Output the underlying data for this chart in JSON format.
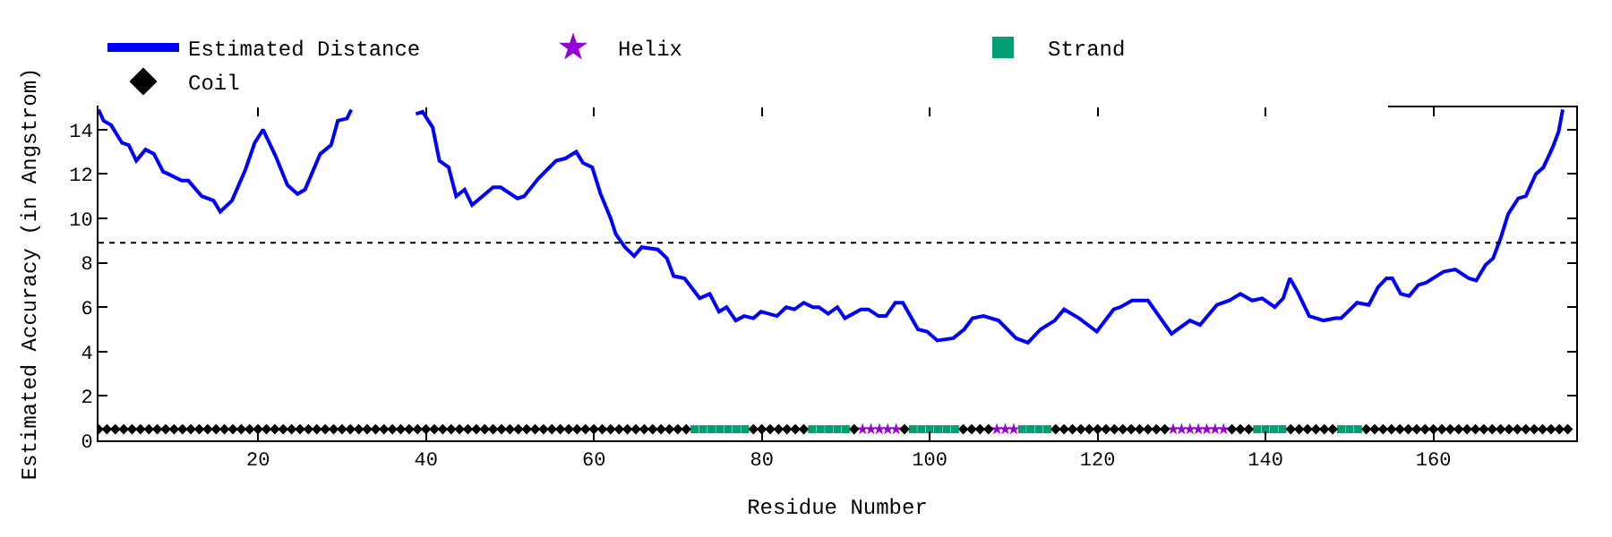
{
  "chart_data": {
    "type": "line",
    "xlabel": "Residue Number",
    "ylabel": "Estimated Accuracy (in Angstrom)",
    "xlim": [
      1,
      177
    ],
    "ylim": [
      0,
      15
    ],
    "xticks": [
      20,
      40,
      60,
      80,
      100,
      120,
      140,
      160
    ],
    "yticks": [
      0,
      2,
      4,
      6,
      8,
      10,
      12,
      14
    ],
    "grid": false,
    "legend": "top",
    "ref_lines": [
      {
        "axis": "y",
        "value": 8.9,
        "label": null,
        "color": "#000000",
        "line_style": "dotted"
      }
    ],
    "series": [
      {
        "name": "Estimated Distance",
        "color": "#0000ff",
        "marker": "none",
        "line_style": "solid",
        "x": [
          1.0,
          1.6,
          2.5,
          3.8,
          4.6,
          5.5,
          6.6,
          7.6,
          8.7,
          9.3,
          10.9,
          11.7,
          13.3,
          14.7,
          15.5,
          16.9,
          18.5,
          19.6,
          20.6,
          22.1,
          23.5,
          24.7,
          25.6,
          27.4,
          28.7,
          29.5,
          30.6,
          31.1,
          35.0,
          38.8,
          39.6,
          40.8,
          41.6,
          42.7,
          43.6,
          44.6,
          45.5,
          48.0,
          48.9,
          50.9,
          51.7,
          53.4,
          55.5,
          56.6,
          57.9,
          58.7,
          59.8,
          60.8,
          62.0,
          62.6,
          63.7,
          64.8,
          65.7,
          67.6,
          68.7,
          69.5,
          70.8,
          72.6,
          73.8,
          74.9,
          75.8,
          76.9,
          77.9,
          79.0,
          79.9,
          81.8,
          82.9,
          83.9,
          85.0,
          86.1,
          86.8,
          87.9,
          89.0,
          89.9,
          91.8,
          92.7,
          93.9,
          94.8,
          95.9,
          96.8,
          98.6,
          99.7,
          100.9,
          102.8,
          104.1,
          105.1,
          106.4,
          108.2,
          110.3,
          111.7,
          113.2,
          114.9,
          116.0,
          117.8,
          119.9,
          121.9,
          122.7,
          124.1,
          126.0,
          128.8,
          131.0,
          132.2,
          134.2,
          135.7,
          137.0,
          138.4,
          139.6,
          141.1,
          142.1,
          142.9,
          143.8,
          145.2,
          146.9,
          148.3,
          149.0,
          150.9,
          152.3,
          153.4,
          154.4,
          155.1,
          156.1,
          157.1,
          158.2,
          159.1,
          161.2,
          162.6,
          164.2,
          165.1,
          166.2,
          167.1,
          168.0,
          168.9,
          170.1,
          171.0,
          172.2,
          173.1,
          174.2,
          174.9,
          175.4
        ],
        "values": [
          14.9,
          14.4,
          14.2,
          13.4,
          13.3,
          12.6,
          13.1,
          12.9,
          12.1,
          12.0,
          11.7,
          11.7,
          11.0,
          10.8,
          10.3,
          10.8,
          12.2,
          13.4,
          14.0,
          12.8,
          11.5,
          11.1,
          11.3,
          12.9,
          13.3,
          14.4,
          14.5,
          14.9,
          null,
          14.7,
          14.8,
          14.1,
          12.6,
          12.3,
          11.0,
          11.3,
          10.6,
          11.4,
          11.4,
          10.9,
          11.0,
          11.8,
          12.6,
          12.7,
          13.0,
          12.5,
          12.3,
          11.1,
          10.0,
          9.3,
          8.7,
          8.3,
          8.7,
          8.6,
          8.2,
          7.4,
          7.3,
          6.4,
          6.6,
          5.8,
          6.0,
          5.4,
          5.6,
          5.5,
          5.8,
          5.6,
          6.0,
          5.9,
          6.2,
          6.0,
          6.0,
          5.7,
          6.0,
          5.5,
          5.9,
          5.9,
          5.6,
          5.6,
          6.2,
          6.2,
          5.0,
          4.9,
          4.5,
          4.6,
          5.0,
          5.5,
          5.6,
          5.4,
          4.6,
          4.4,
          5.0,
          5.4,
          5.9,
          5.5,
          4.9,
          5.9,
          6.0,
          6.3,
          6.3,
          4.8,
          5.4,
          5.2,
          6.1,
          6.3,
          6.6,
          6.3,
          6.4,
          6.0,
          6.4,
          7.3,
          6.7,
          5.6,
          5.4,
          5.5,
          5.5,
          6.2,
          6.1,
          6.9,
          7.3,
          7.3,
          6.6,
          6.5,
          7.0,
          7.1,
          7.6,
          7.7,
          7.3,
          7.2,
          7.9,
          8.2,
          9.1,
          10.2,
          10.9,
          11.0,
          12.0,
          12.3,
          13.2,
          13.9,
          14.9
        ]
      },
      {
        "name": "Helix",
        "type": "scatter",
        "color": "#9400d3",
        "marker": "star",
        "x": [
          92,
          93,
          94,
          95,
          96,
          108,
          109,
          110,
          129,
          130,
          131,
          132,
          133,
          134,
          135
        ],
        "values": [
          0.5,
          0.5,
          0.5,
          0.5,
          0.5,
          0.5,
          0.5,
          0.5,
          0.5,
          0.5,
          0.5,
          0.5,
          0.5,
          0.5,
          0.5
        ]
      },
      {
        "name": "Strand",
        "type": "scatter",
        "color": "#009e73",
        "marker": "square",
        "x": [
          72,
          73,
          74,
          75,
          76,
          77,
          78,
          86,
          87,
          88,
          89,
          90,
          98,
          99,
          100,
          101,
          102,
          103,
          111,
          112,
          113,
          114,
          139,
          140,
          141,
          142,
          149,
          150,
          151
        ],
        "values": [
          0.5,
          0.5,
          0.5,
          0.5,
          0.5,
          0.5,
          0.5,
          0.5,
          0.5,
          0.5,
          0.5,
          0.5,
          0.5,
          0.5,
          0.5,
          0.5,
          0.5,
          0.5,
          0.5,
          0.5,
          0.5,
          0.5,
          0.5,
          0.5,
          0.5,
          0.5,
          0.5,
          0.5,
          0.5
        ]
      },
      {
        "name": "Coil",
        "type": "scatter",
        "color": "#000000",
        "marker": "diamond",
        "x": [
          1,
          2,
          3,
          4,
          5,
          6,
          7,
          8,
          9,
          10,
          11,
          12,
          13,
          14,
          15,
          16,
          17,
          18,
          19,
          20,
          21,
          22,
          23,
          24,
          25,
          26,
          27,
          28,
          29,
          30,
          31,
          32,
          33,
          34,
          35,
          36,
          37,
          38,
          39,
          40,
          41,
          42,
          43,
          44,
          45,
          46,
          47,
          48,
          49,
          50,
          51,
          52,
          53,
          54,
          55,
          56,
          57,
          58,
          59,
          60,
          61,
          62,
          63,
          64,
          65,
          66,
          67,
          68,
          69,
          70,
          71,
          79,
          80,
          81,
          82,
          83,
          84,
          85,
          91,
          97,
          104,
          105,
          106,
          107,
          115,
          116,
          117,
          118,
          119,
          120,
          121,
          122,
          123,
          124,
          125,
          126,
          127,
          128,
          136,
          137,
          138,
          143,
          144,
          145,
          146,
          147,
          148,
          152,
          153,
          154,
          155,
          156,
          157,
          158,
          159,
          160,
          161,
          162,
          163,
          164,
          165,
          166,
          167,
          168,
          169,
          170,
          171,
          172,
          173,
          174,
          175,
          176
        ],
        "values": [
          0.5,
          0.5,
          0.5,
          0.5,
          0.5,
          0.5,
          0.5,
          0.5,
          0.5,
          0.5,
          0.5,
          0.5,
          0.5,
          0.5,
          0.5,
          0.5,
          0.5,
          0.5,
          0.5,
          0.5,
          0.5,
          0.5,
          0.5,
          0.5,
          0.5,
          0.5,
          0.5,
          0.5,
          0.5,
          0.5,
          0.5,
          0.5,
          0.5,
          0.5,
          0.5,
          0.5,
          0.5,
          0.5,
          0.5,
          0.5,
          0.5,
          0.5,
          0.5,
          0.5,
          0.5,
          0.5,
          0.5,
          0.5,
          0.5,
          0.5,
          0.5,
          0.5,
          0.5,
          0.5,
          0.5,
          0.5,
          0.5,
          0.5,
          0.5,
          0.5,
          0.5,
          0.5,
          0.5,
          0.5,
          0.5,
          0.5,
          0.5,
          0.5,
          0.5,
          0.5,
          0.5,
          0.5,
          0.5,
          0.5,
          0.5,
          0.5,
          0.5,
          0.5,
          0.5,
          0.5,
          0.5,
          0.5,
          0.5,
          0.5,
          0.5,
          0.5,
          0.5,
          0.5,
          0.5,
          0.5,
          0.5,
          0.5,
          0.5,
          0.5,
          0.5,
          0.5,
          0.5,
          0.5,
          0.5,
          0.5,
          0.5,
          0.5,
          0.5,
          0.5,
          0.5,
          0.5,
          0.5,
          0.5,
          0.5,
          0.5,
          0.5,
          0.5,
          0.5,
          0.5,
          0.5,
          0.5,
          0.5,
          0.5,
          0.5,
          0.5,
          0.5,
          0.5,
          0.5,
          0.5,
          0.5,
          0.5,
          0.5,
          0.5,
          0.5,
          0.5,
          0.5,
          0.5
        ]
      }
    ]
  }
}
